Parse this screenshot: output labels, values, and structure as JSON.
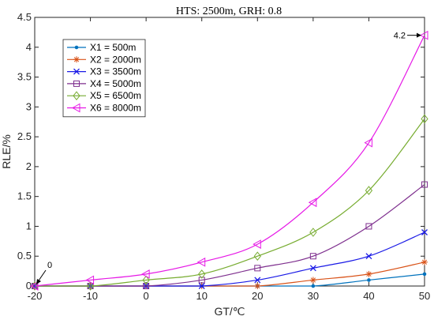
{
  "chart_data": {
    "type": "line",
    "title": "HTS: 2500m, GRH: 0.8",
    "xlabel": "GT/℃",
    "ylabel": "RLE/%",
    "xlim": [
      -20,
      50
    ],
    "ylim": [
      0,
      4.5
    ],
    "xticks": [
      "-20",
      "-10",
      "0",
      "10",
      "20",
      "30",
      "40",
      "50"
    ],
    "yticks": [
      "0",
      "0.5",
      "1",
      "1.5",
      "2",
      "2.5",
      "3",
      "3.5",
      "4",
      "4.5"
    ],
    "legend_position": "top-left",
    "x": [
      -20,
      -10,
      0,
      10,
      20,
      30,
      40,
      50
    ],
    "series": [
      {
        "name": "X1 = 500m",
        "color": "#0072BD",
        "marker": "dot",
        "values": [
          0,
          0,
          0,
          0,
          0,
          0,
          0.1,
          0.2
        ]
      },
      {
        "name": "X2 = 2000m",
        "color": "#D95319",
        "marker": "asterisk",
        "values": [
          0,
          0,
          0,
          0,
          0,
          0.1,
          0.2,
          0.4
        ]
      },
      {
        "name": "X3 = 3500m",
        "color": "#1A1AE6",
        "marker": "x",
        "values": [
          0,
          0,
          0,
          0,
          0.1,
          0.3,
          0.5,
          0.9
        ]
      },
      {
        "name": "X4 = 5000m",
        "color": "#7E2F8E",
        "marker": "square",
        "values": [
          0,
          0,
          0,
          0.1,
          0.3,
          0.5,
          1.0,
          1.7
        ]
      },
      {
        "name": "X5 = 6500m",
        "color": "#77AC30",
        "marker": "diamond",
        "values": [
          0,
          0,
          0.1,
          0.2,
          0.5,
          0.9,
          1.6,
          2.8
        ]
      },
      {
        "name": "X6 = 8000m",
        "color": "#E619E6",
        "marker": "triangle-left",
        "values": [
          0,
          0.1,
          0.2,
          0.4,
          0.7,
          1.4,
          2.4,
          4.2
        ]
      }
    ],
    "annotations": [
      {
        "text": "0",
        "x": -20,
        "y": 0
      },
      {
        "text": "4.2",
        "x": 50,
        "y": 4.2
      }
    ]
  }
}
